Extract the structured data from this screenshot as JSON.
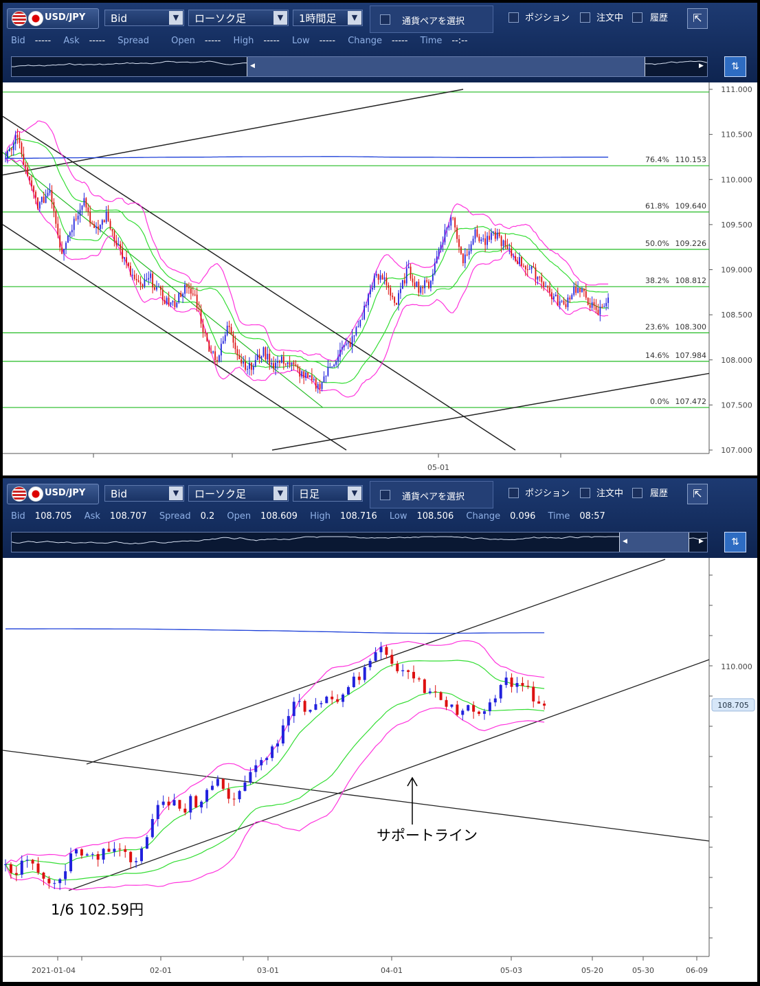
{
  "panels": [
    {
      "pair": "USD/JPY",
      "price_type": "Bid",
      "chart_type": "ローソク足",
      "timeframe": "1時間足",
      "select_pair": "通貨ペアを選択",
      "checks": [
        "ポジション",
        "注文中",
        "履歴"
      ],
      "quote": [
        {
          "label": "Bid",
          "value": "-----"
        },
        {
          "label": "Ask",
          "value": "-----"
        },
        {
          "label": "Spread",
          "value": ""
        },
        {
          "label": "Open",
          "value": "-----"
        },
        {
          "label": "High",
          "value": "-----"
        },
        {
          "label": "Low",
          "value": "-----"
        },
        {
          "label": "Change",
          "value": "-----"
        },
        {
          "label": "Time",
          "value": "--:--"
        }
      ]
    },
    {
      "pair": "USD/JPY",
      "price_type": "Bid",
      "chart_type": "ローソク足",
      "timeframe": "日足",
      "select_pair": "通貨ペアを選択",
      "checks": [
        "ポジション",
        "注文中",
        "履歴"
      ],
      "quote": [
        {
          "label": "Bid",
          "value": "108.705"
        },
        {
          "label": "Ask",
          "value": "108.707"
        },
        {
          "label": "Spread",
          "value": "0.2"
        },
        {
          "label": "Open",
          "value": "108.609"
        },
        {
          "label": "High",
          "value": "108.716"
        },
        {
          "label": "Low",
          "value": "108.506"
        },
        {
          "label": "Change",
          "value": "0.096"
        },
        {
          "label": "Time",
          "value": "08:57"
        }
      ]
    }
  ],
  "annotations": {
    "support_line": "サポートライン",
    "low_note": "1/6  102.59円"
  },
  "colors": {
    "bull": "#2222dd",
    "bear": "#dd1111",
    "bollinger_outer": "#ff33dd",
    "bollinger_inner": "#33dd33",
    "sma": "#1c3fd8",
    "fib": "#22bb22",
    "trendline": "#222222"
  },
  "chart_data": [
    {
      "type": "candlestick",
      "timeframe": "1時間足",
      "ylim": [
        107.0,
        111.0
      ],
      "y_ticks": [
        "111.000",
        "110.500",
        "110.000",
        "109.500",
        "109.000",
        "108.500",
        "108.000",
        "107.500",
        "107.000"
      ],
      "x_ticks": [
        "05-01"
      ],
      "fib_levels": [
        {
          "pct": "76.4%",
          "price": "110.153"
        },
        {
          "pct": "61.8%",
          "price": "109.640"
        },
        {
          "pct": "50.0%",
          "price": "109.226"
        },
        {
          "pct": "38.2%",
          "price": "108.812"
        },
        {
          "pct": "23.6%",
          "price": "108.300"
        },
        {
          "pct": "14.6%",
          "price": "107.984"
        },
        {
          "pct": "0.0%",
          "price": "107.472"
        }
      ],
      "path": [
        110.2,
        110.5,
        110.0,
        109.7,
        109.9,
        109.2,
        109.5,
        109.8,
        109.4,
        109.6,
        109.3,
        109.0,
        108.8,
        108.9,
        108.7,
        108.6,
        108.8,
        108.7,
        108.2,
        108.0,
        108.4,
        108.0,
        107.9,
        108.1,
        107.95,
        108.0,
        107.9,
        107.8,
        107.7,
        107.9,
        108.1,
        108.2,
        108.5,
        108.9,
        108.9,
        108.6,
        109.0,
        108.8,
        108.85,
        109.3,
        109.6,
        109.1,
        109.4,
        109.3,
        109.4,
        109.2,
        109.1,
        109.0,
        108.9,
        108.7,
        108.6,
        108.8,
        108.7,
        108.5,
        108.7
      ]
    },
    {
      "type": "candlestick",
      "timeframe": "日足",
      "y_ticks": [
        "110.000"
      ],
      "current_price": "108.705",
      "x_ticks": [
        "2021-01-04",
        "02-01",
        "03-01",
        "04-01",
        "05-03",
        "05-20",
        "05-30",
        "06-09"
      ],
      "path": [
        103.2,
        103.0,
        103.4,
        103.3,
        103.0,
        102.7,
        102.59,
        103.0,
        103.8,
        103.7,
        103.9,
        103.6,
        103.8,
        103.8,
        103.7,
        103.5,
        103.6,
        104.6,
        105.2,
        105.4,
        105.6,
        104.9,
        105.6,
        105.1,
        106.0,
        106.2,
        105.8,
        105.4,
        105.7,
        106.6,
        106.5,
        107.0,
        107.3,
        108.0,
        108.8,
        108.8,
        108.5,
        108.7,
        109.0,
        109.0,
        108.9,
        109.4,
        109.7,
        110.2,
        110.5,
        110.6,
        110.0,
        109.8,
        109.7,
        109.5,
        109.0,
        109.3,
        108.9,
        108.6,
        108.5,
        108.7,
        108.2,
        108.5,
        109.0,
        109.5,
        109.4,
        109.5,
        109.2,
        108.9,
        108.7
      ]
    }
  ]
}
